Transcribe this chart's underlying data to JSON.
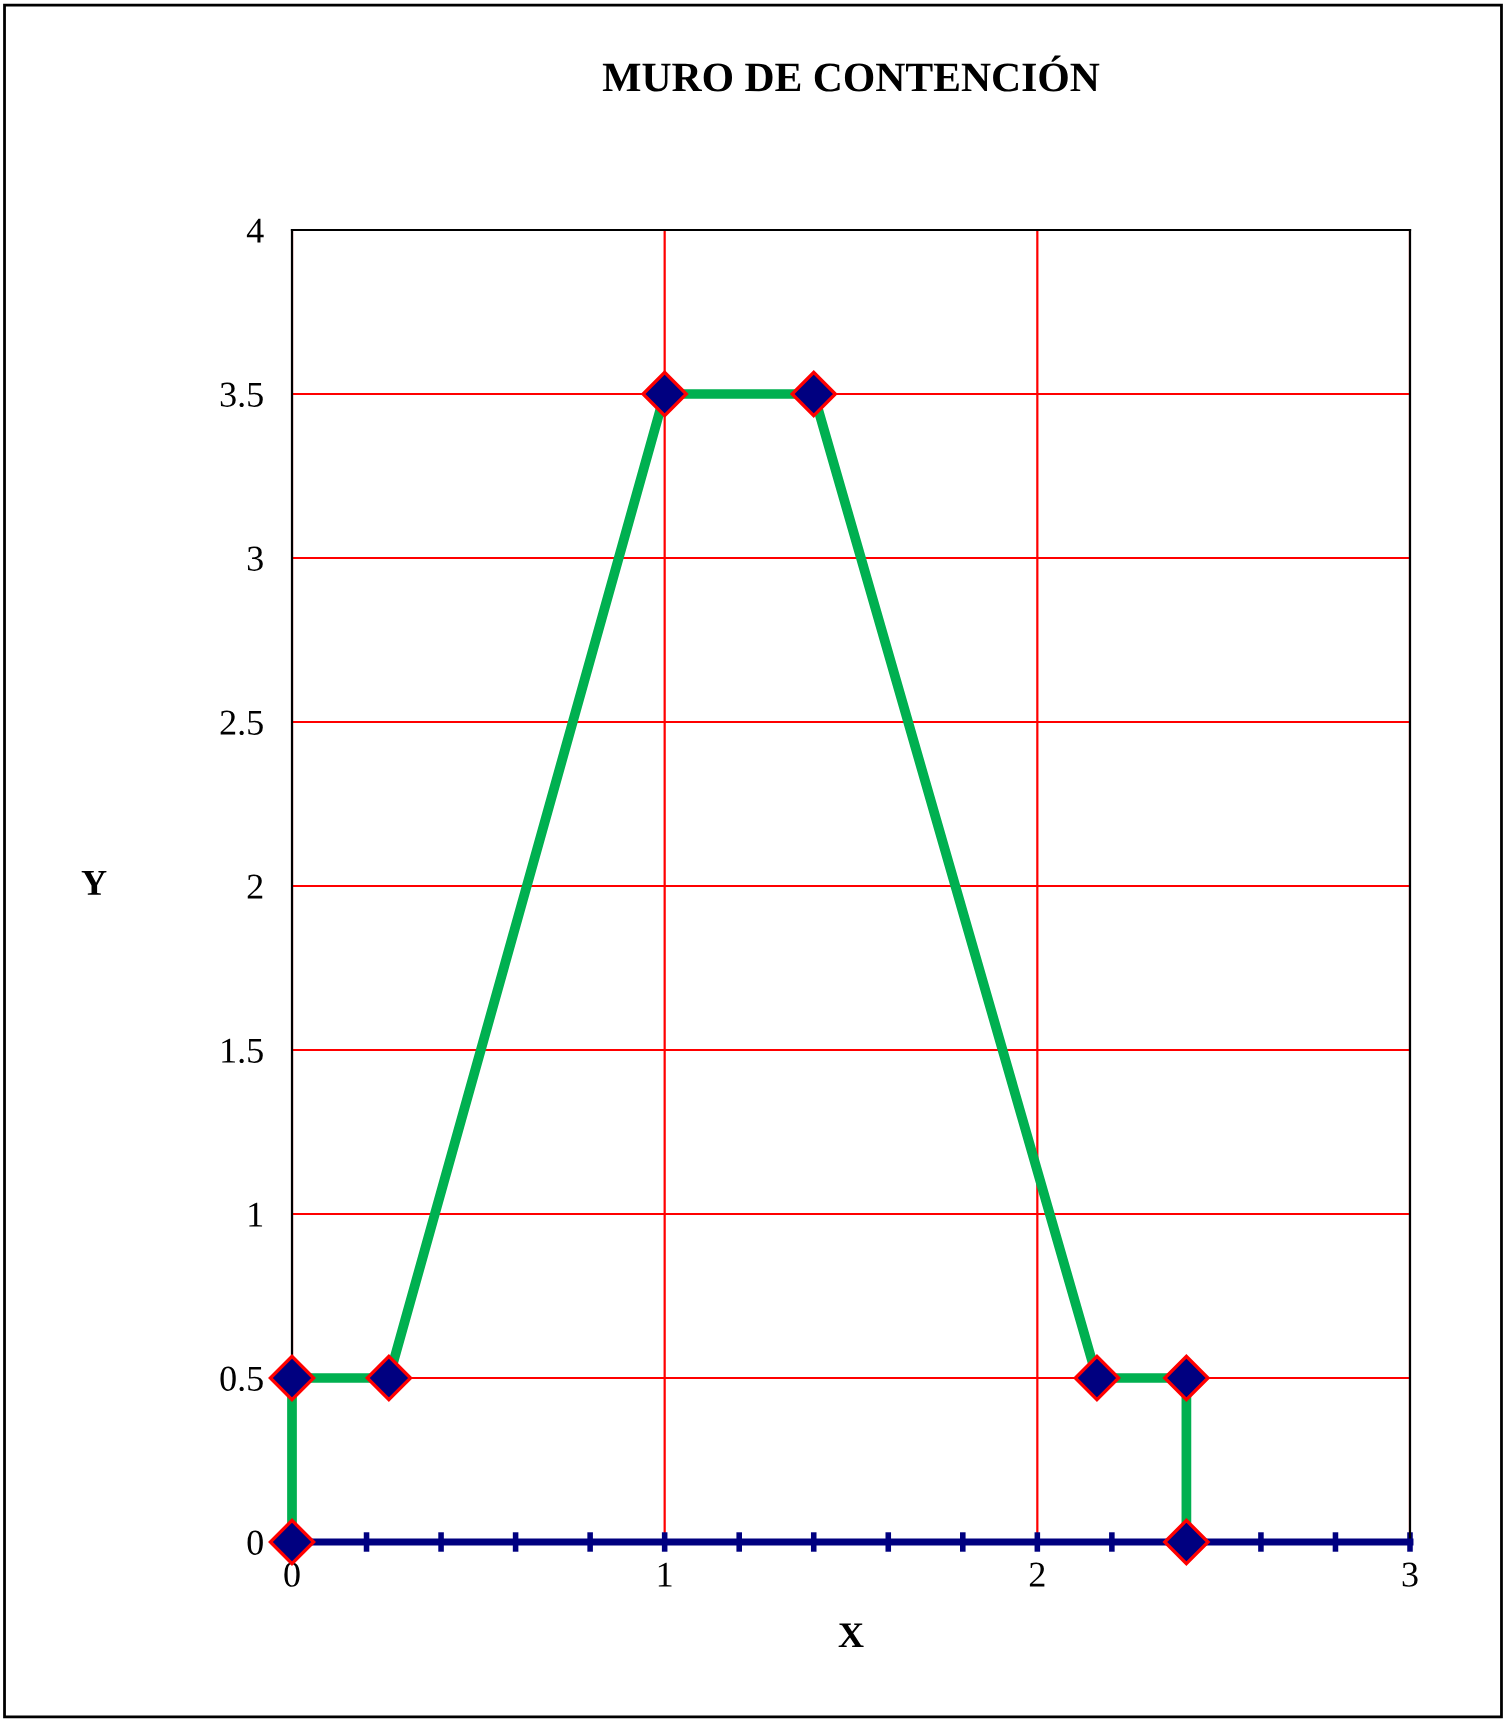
{
  "chart_data": {
    "type": "line",
    "title": "MURO DE CONTENCIÓN",
    "xlabel": "X",
    "ylabel": "Y",
    "x": [
      0,
      0,
      0.26,
      1,
      1.4,
      2.16,
      2.4,
      2.4
    ],
    "series": [
      {
        "color": "#00b050",
        "values": [
          0,
          0.5,
          0.5,
          3.5,
          3.5,
          0.5,
          0.5,
          0
        ]
      }
    ],
    "marker": "diamond",
    "line_style": "solid",
    "grid": true,
    "xlim": [
      0,
      3
    ],
    "ylim": [
      0,
      4
    ],
    "xticks": [
      0,
      {
        "value": 0.2,
        "label": null
      },
      {
        "value": 0.4,
        "label": null
      },
      {
        "value": 0.6,
        "label": null
      },
      {
        "value": 0.8,
        "label": null
      },
      1,
      {
        "value": 1.2,
        "label": null
      },
      {
        "value": 1.4,
        "label": null
      },
      {
        "value": 1.6,
        "label": null
      },
      {
        "value": 1.8,
        "label": null
      },
      2,
      {
        "value": 2.2,
        "label": null
      },
      {
        "value": 2.4,
        "label": null
      },
      {
        "value": 2.6,
        "label": null
      },
      {
        "value": 2.8,
        "label": null
      },
      3
    ],
    "yticks": [
      0,
      0.5,
      1,
      1.5,
      2,
      2.5,
      3,
      3.5,
      4
    ]
  }
}
